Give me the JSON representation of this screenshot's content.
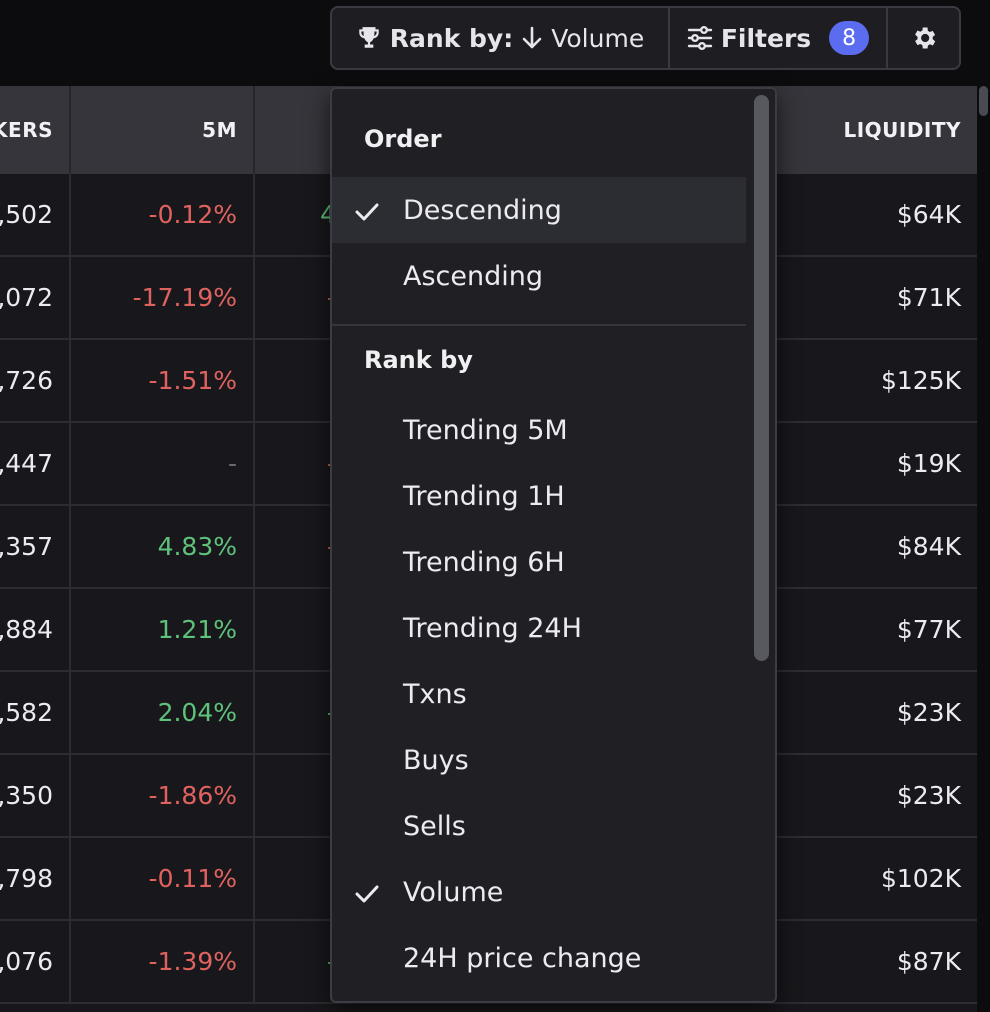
{
  "toolbar": {
    "rank_by_label": "Rank by:",
    "rank_by_value": "Volume",
    "filters_label": "Filters",
    "filters_count": "8"
  },
  "table": {
    "columns": {
      "makers": "KERS",
      "m5": "5M",
      "liquidity": "LIQUIDITY"
    },
    "rows": [
      {
        "makers": ",502",
        "m5": "-0.12%",
        "m5_sign": "neg",
        "next": "4",
        "next_sign": "pos",
        "liquidity": "$64K"
      },
      {
        "makers": ",072",
        "m5": "-17.19%",
        "m5_sign": "neg",
        "next": "-",
        "next_sign": "neg",
        "liquidity": "$71K"
      },
      {
        "makers": ",726",
        "m5": "-1.51%",
        "m5_sign": "neg",
        "next": "",
        "next_sign": "neg",
        "liquidity": "$125K"
      },
      {
        "makers": ",447",
        "m5": "-",
        "m5_sign": "dash",
        "next": "-",
        "next_sign": "neg",
        "liquidity": "$19K"
      },
      {
        "makers": ",357",
        "m5": "4.83%",
        "m5_sign": "pos",
        "next": "-",
        "next_sign": "neg",
        "liquidity": "$84K"
      },
      {
        "makers": ",884",
        "m5": "1.21%",
        "m5_sign": "pos",
        "next": "",
        "next_sign": "pos",
        "liquidity": "$77K"
      },
      {
        "makers": ",582",
        "m5": "2.04%",
        "m5_sign": "pos",
        "next": "-",
        "next_sign": "pos",
        "liquidity": "$23K"
      },
      {
        "makers": ",350",
        "m5": "-1.86%",
        "m5_sign": "neg",
        "next": "",
        "next_sign": "neg",
        "liquidity": "$23K"
      },
      {
        "makers": ",798",
        "m5": "-0.11%",
        "m5_sign": "neg",
        "next": "",
        "next_sign": "neg",
        "liquidity": "$102K"
      },
      {
        "makers": ",076",
        "m5": "-1.39%",
        "m5_sign": "neg",
        "next": "-",
        "next_sign": "pos",
        "liquidity": "$87K"
      }
    ]
  },
  "dropdown": {
    "order_header": "Order",
    "order_items": [
      {
        "label": "Descending",
        "checked": true
      },
      {
        "label": "Ascending",
        "checked": false
      }
    ],
    "rank_header": "Rank by",
    "rank_items": [
      {
        "label": "Trending 5M",
        "checked": false
      },
      {
        "label": "Trending 1H",
        "checked": false
      },
      {
        "label": "Trending 6H",
        "checked": false
      },
      {
        "label": "Trending 24H",
        "checked": false
      },
      {
        "label": "Txns",
        "checked": false
      },
      {
        "label": "Buys",
        "checked": false
      },
      {
        "label": "Sells",
        "checked": false
      },
      {
        "label": "Volume",
        "checked": true
      },
      {
        "label": "24H price change",
        "checked": false
      }
    ]
  },
  "icons": {
    "rank": "trophy-icon",
    "direction": "arrow-down-icon",
    "filters": "sliders-icon",
    "settings": "gear-icon",
    "check": "check-icon"
  },
  "colors": {
    "negative": "#e0625f",
    "positive": "#5fc27a",
    "badge": "#5b6cf0",
    "background": "#18181c"
  }
}
